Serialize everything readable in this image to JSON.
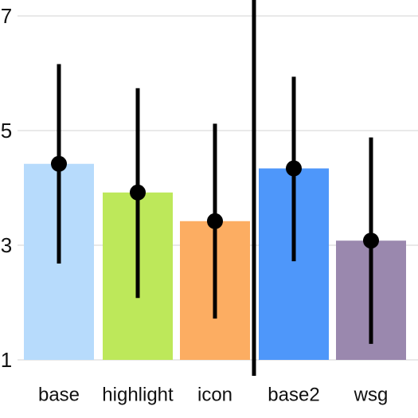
{
  "chart_data": {
    "type": "bar",
    "title": "",
    "xlabel": "",
    "ylabel": "",
    "ylim": [
      1,
      7
    ],
    "yticks": [
      "1",
      "3",
      "5",
      "7"
    ],
    "grid": true,
    "categories": [
      "base",
      "highlight",
      "icon",
      "base2",
      "wsg"
    ],
    "values": [
      4.42,
      3.92,
      3.42,
      4.34,
      3.08
    ],
    "error_low": [
      2.68,
      2.08,
      1.72,
      2.72,
      1.28
    ],
    "error_high": [
      6.16,
      5.74,
      5.12,
      5.94,
      4.88
    ],
    "colors": [
      "#b7dbfc",
      "#bde85a",
      "#fcad62",
      "#4e97fa",
      "#9a88ae"
    ],
    "separator_after_index": 2,
    "point_color": "#000000",
    "errorbar_color": "#000000"
  }
}
